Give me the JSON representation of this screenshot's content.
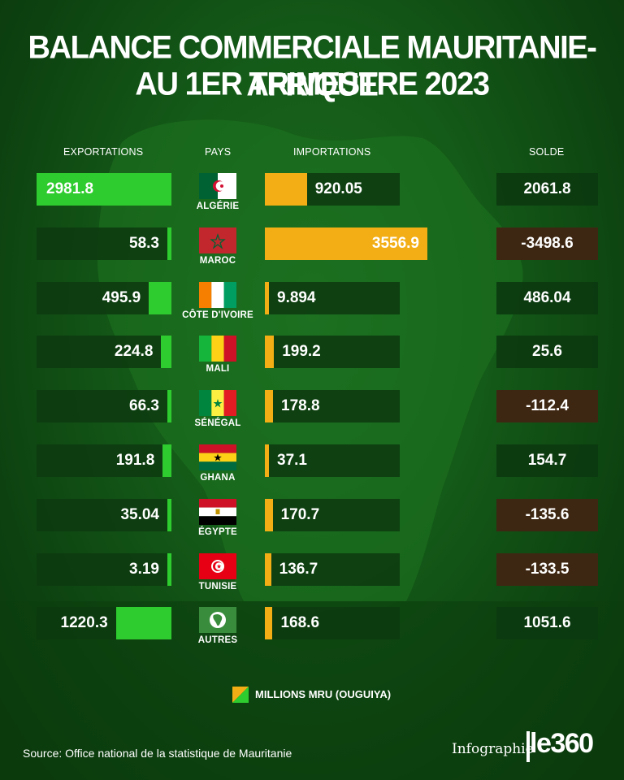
{
  "title_line1": "BALANCE COMMERCIALE MAURITANIE-AFRIQUE",
  "title_line2": "AU 1ER TRIMESTRE 2023",
  "colors": {
    "exports": "#2ecc2e",
    "imports": "#f2ae14",
    "positive_balance": "#0c3a10",
    "negative_balance": "#3e2712"
  },
  "chart_data": {
    "type": "table",
    "columns": [
      "EXPORTATIONS",
      "PAYS",
      "IMPORTATIONS",
      "SOLDE"
    ],
    "unit": "MILLIONS MRU (OUGUIYA)",
    "rows": [
      {
        "pays": "ALGÉRIE",
        "flag": "algeria-flag-icon",
        "exportations": "2981.8",
        "importations": "920.05",
        "solde": "2061.8"
      },
      {
        "pays": "MAROC",
        "flag": "morocco-flag-icon",
        "exportations": "58.3",
        "importations": "3556.9",
        "solde": "-3498.6"
      },
      {
        "pays": "CÔTE D'IVOIRE",
        "flag": "ivory-coast-flag-icon",
        "exportations": "495.9",
        "importations": "9.894",
        "solde": "486.04"
      },
      {
        "pays": "MALI",
        "flag": "mali-flag-icon",
        "exportations": "224.8",
        "importations": "199.2",
        "solde": "25.6"
      },
      {
        "pays": "SÉNÉGAL",
        "flag": "senegal-flag-icon",
        "exportations": "66.3",
        "importations": "178.8",
        "solde": "-112.4"
      },
      {
        "pays": "GHANA",
        "flag": "ghana-flag-icon",
        "exportations": "191.8",
        "importations": "37.1",
        "solde": "154.7"
      },
      {
        "pays": "ÉGYPTE",
        "flag": "egypt-flag-icon",
        "exportations": "35.04",
        "importations": "170.7",
        "solde": "-135.6"
      },
      {
        "pays": "TUNISIE",
        "flag": "tunisia-flag-icon",
        "exportations": "3.19",
        "importations": "136.7",
        "solde": "-133.5"
      },
      {
        "pays": "AUTRES",
        "flag": "african-union-flag-icon",
        "exportations": "1220.3",
        "importations": "168.6",
        "solde": "1051.6"
      }
    ]
  },
  "legend": "MILLIONS MRU (OUGUIYA)",
  "source": "Source: Office national de la statistique de Mauritanie",
  "infographie": "Infographie",
  "logo": "le360"
}
